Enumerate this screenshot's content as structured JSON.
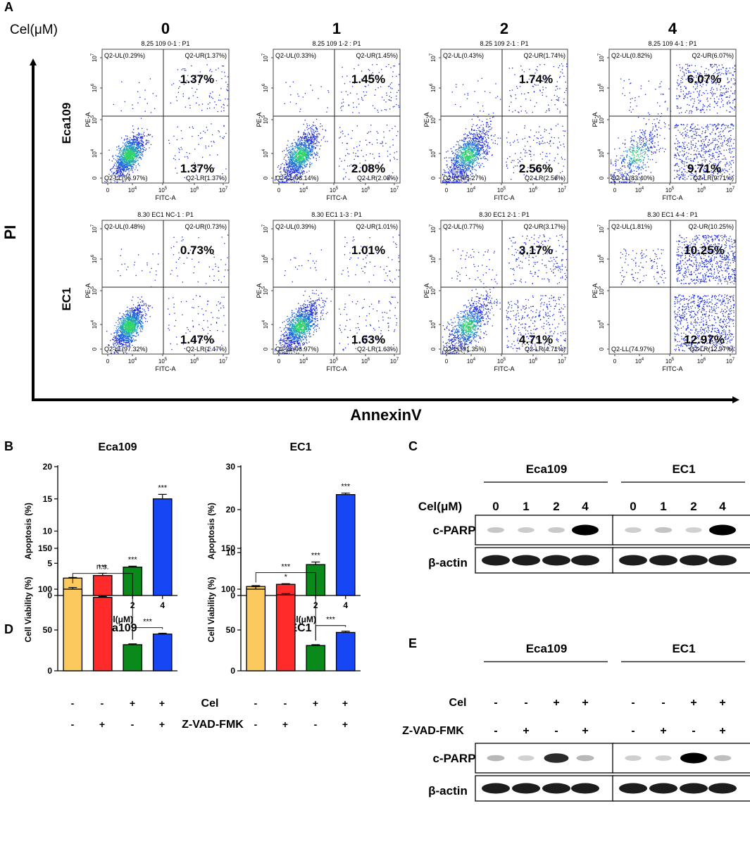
{
  "panel_labels": [
    "A",
    "B",
    "C",
    "D",
    "E"
  ],
  "panelA": {
    "concentration_label": "Cel(μM)",
    "concentrations": [
      "0",
      "1",
      "2",
      "4"
    ],
    "rows": [
      {
        "cell_line": "Eca109",
        "plots": [
          {
            "title": "8.25 109 0-1 : P1",
            "UL": "Q2-UL(0.29%)",
            "UR": "Q2-UR(1.37%)",
            "LL": "Q2-LL(96.97%)",
            "LR": "Q2-LR(1.37%)",
            "ur_big": "1.37%",
            "lr_big": "1.37%",
            "ur_frac": 0.0137,
            "lr_frac": 0.0137,
            "ul_frac": 0.0029
          },
          {
            "title": "8.25 109 1-2 : P1",
            "UL": "Q2-UL(0.33%)",
            "UR": "Q2-UR(1.45%)",
            "LL": "Q2-LL(96.14%)",
            "LR": "Q2-LR(2.08%)",
            "ur_big": "1.45%",
            "lr_big": "2.08%",
            "ur_frac": 0.0145,
            "lr_frac": 0.0208,
            "ul_frac": 0.0033
          },
          {
            "title": "8.25 109 2-1 : P1",
            "UL": "Q2-UL(0.43%)",
            "UR": "Q2-UR(1.74%)",
            "LL": "Q2-LL(95.27%)",
            "LR": "Q2-LR(2.56%)",
            "ur_big": "1.74%",
            "lr_big": "2.56%",
            "ur_frac": 0.0174,
            "lr_frac": 0.0256,
            "ul_frac": 0.0043
          },
          {
            "title": "8.25 109 4-1 : P1",
            "UL": "Q2-UL(0.82%)",
            "UR": "Q2-UR(6.07%)",
            "LL": "Q2-LL(83.40%)",
            "LR": "Q2-LR(9.71%)",
            "ur_big": "6.07%",
            "lr_big": "9.71%",
            "ur_frac": 0.0607,
            "lr_frac": 0.0971,
            "ul_frac": 0.0082
          }
        ]
      },
      {
        "cell_line": "EC1",
        "plots": [
          {
            "title": "8.30 EC1 NC-1 : P1",
            "UL": "Q2-UL(0.48%)",
            "UR": "Q2-UR(0.73%)",
            "LL": "Q2-LL(97.32%)",
            "LR": "Q2-LR(1.47%)",
            "ur_big": "0.73%",
            "lr_big": "1.47%",
            "ur_frac": 0.0073,
            "lr_frac": 0.0147,
            "ul_frac": 0.0048
          },
          {
            "title": "8.30 EC1 1-3 : P1",
            "UL": "Q2-UL(0.39%)",
            "UR": "Q2-UR(1.01%)",
            "LL": "Q2-LL(96.97%)",
            "LR": "Q2-LR(1.63%)",
            "ur_big": "1.01%",
            "lr_big": "1.63%",
            "ur_frac": 0.0101,
            "lr_frac": 0.0163,
            "ul_frac": 0.0039
          },
          {
            "title": "8.30 EC1 2-1 : P1",
            "UL": "Q2-UL(0.77%)",
            "UR": "Q2-UR(3.17%)",
            "LL": "Q2-LL(91.35%)",
            "LR": "Q2-LR(4.71%)",
            "ur_big": "3.17%",
            "lr_big": "4.71%",
            "ur_frac": 0.0317,
            "lr_frac": 0.0471,
            "ul_frac": 0.0077
          },
          {
            "title": "8.30 EC1 4-4 : P1",
            "UL": "Q2-UL(1.81%)",
            "UR": "Q2-UR(10.25%)",
            "LL": "Q2-LL(74.97%)",
            "LR": "Q2-LR(12.97%)",
            "ur_big": "10.25%",
            "lr_big": "12.97%",
            "ur_frac": 0.1025,
            "lr_frac": 0.1297,
            "ul_frac": 0.0181
          }
        ]
      }
    ],
    "x_channel": "FITC-A",
    "y_channel": "PE-A",
    "y_ticks": [
      "0",
      "10",
      "10",
      "10",
      "10"
    ],
    "y_tick_exps": [
      "",
      "4",
      "5",
      "6",
      "7"
    ],
    "x_ticks": [
      "0",
      "10",
      "10",
      "10",
      "10"
    ],
    "x_tick_exps": [
      "",
      "4",
      "5",
      "6",
      "7"
    ],
    "big_y_axis": "PI",
    "big_x_axis": "AnnexinV"
  },
  "chart_data": [
    {
      "type": "bar",
      "panel": "B",
      "title": "Eca109",
      "categories": [
        "0",
        "1",
        "2",
        "4"
      ],
      "values": [
        2.7,
        3.1,
        4.4,
        15.0
      ],
      "errors": [
        0.1,
        0.35,
        0.15,
        0.7
      ],
      "annotations": [
        "",
        "n.s.",
        "***",
        "***"
      ],
      "colors": [
        "#fcc95f",
        "#ff2b2b",
        "#0a8a1a",
        "#1747f5"
      ],
      "xlabel": "Cel(μM)",
      "ylabel": "Apoptosis (%)",
      "ylim": [
        0,
        20
      ],
      "yticks": [
        0,
        5,
        10,
        15,
        20
      ]
    },
    {
      "type": "bar",
      "panel": "B",
      "title": "EC1",
      "categories": [
        "0",
        "1",
        "2",
        "4"
      ],
      "values": [
        2.1,
        2.6,
        7.2,
        23.5
      ],
      "errors": [
        0.2,
        0.15,
        0.6,
        0.35
      ],
      "annotations": [
        "",
        "*",
        "***",
        "***"
      ],
      "colors": [
        "#fcc95f",
        "#ff2b2b",
        "#0a8a1a",
        "#1747f5"
      ],
      "xlabel": "Cel(μM)",
      "ylabel": "Apoptosis (%)",
      "ylim": [
        0,
        30
      ],
      "yticks": [
        0,
        10,
        20,
        30
      ]
    },
    {
      "type": "bar",
      "panel": "D",
      "title": "Eca109",
      "categories": [
        "1",
        "2",
        "3",
        "4"
      ],
      "values": [
        100,
        90,
        32,
        45
      ],
      "errors": [
        2.0,
        1.0,
        1.0,
        1.0
      ],
      "comparisons": [
        {
          "from": 0,
          "to": 2,
          "label": "***"
        },
        {
          "from": 2,
          "to": 3,
          "label": "***"
        }
      ],
      "colors": [
        "#fcc95f",
        "#ff2b2b",
        "#0a8a1a",
        "#1747f5"
      ],
      "ylabel": "Cell  Viability  (%)",
      "ylim": [
        0,
        150
      ],
      "yticks": [
        0,
        50,
        100,
        150
      ]
    },
    {
      "type": "bar",
      "panel": "D",
      "title": "EC1",
      "categories": [
        "1",
        "2",
        "3",
        "4"
      ],
      "values": [
        100,
        93,
        31,
        47
      ],
      "errors": [
        3.0,
        1.5,
        1.0,
        1.5
      ],
      "comparisons": [
        {
          "from": 0,
          "to": 2,
          "label": "***"
        },
        {
          "from": 2,
          "to": 3,
          "label": "***"
        }
      ],
      "colors": [
        "#fcc95f",
        "#ff2b2b",
        "#0a8a1a",
        "#1747f5"
      ],
      "ylabel": "Cell  Viability  (%)",
      "ylim": [
        0,
        150
      ],
      "yticks": [
        0,
        50,
        100,
        150
      ]
    }
  ],
  "panelD_table": {
    "rows": [
      {
        "label": "Cel",
        "values": [
          "-",
          "-",
          "+",
          "+"
        ]
      },
      {
        "label": "Z-VAD-FMK",
        "values": [
          "-",
          "+",
          "-",
          "+"
        ]
      }
    ]
  },
  "panelC": {
    "groups": [
      "Eca109",
      "EC1"
    ],
    "conc_label": "Cel(μM)",
    "lanes": [
      "0",
      "1",
      "2",
      "4"
    ],
    "bands": [
      "c-PARP",
      "β-actin"
    ],
    "cparp_intensity": [
      [
        0.08,
        0.06,
        0.07,
        1.0
      ],
      [
        0.05,
        0.1,
        0.03,
        1.0
      ]
    ]
  },
  "panelE": {
    "groups": [
      "Eca109",
      "EC1"
    ],
    "rows": [
      {
        "label": "Cel",
        "values": [
          "-",
          "-",
          "+",
          "+"
        ]
      },
      {
        "label": "Z-VAD-FMK",
        "values": [
          "-",
          "+",
          "-",
          "+"
        ]
      }
    ],
    "bands": [
      "c-PARP",
      "β-actin"
    ],
    "cparp_intensity": [
      [
        0.15,
        0.03,
        0.8,
        0.15
      ],
      [
        0.05,
        0.03,
        1.0,
        0.12
      ]
    ]
  }
}
